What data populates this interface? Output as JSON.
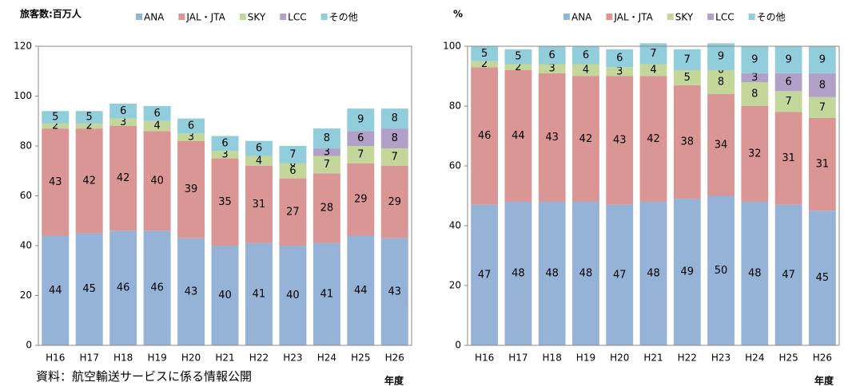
{
  "source": "資料：航空輸送サービスに係る情報公開",
  "chart_data": [
    {
      "type": "stacked_bar",
      "y_label": "旅客数:百万人",
      "x_label": "年度",
      "categories": [
        "H16",
        "H17",
        "H18",
        "H19",
        "H20",
        "H21",
        "H22",
        "H23",
        "H24",
        "H25",
        "H26"
      ],
      "ylim": [
        0,
        120
      ],
      "yticks": [
        0,
        20,
        40,
        60,
        80,
        100,
        120
      ],
      "grid": false,
      "series": [
        {
          "name": "ANA",
          "color": "#95b3d7",
          "values": [
            44,
            45,
            46,
            46,
            43,
            40,
            41,
            40,
            41,
            44,
            43
          ]
        },
        {
          "name": "JAL・JTA",
          "color": "#da9694",
          "values": [
            43,
            42,
            42,
            40,
            39,
            35,
            31,
            27,
            28,
            29,
            29
          ]
        },
        {
          "name": "SKY",
          "color": "#c4d79b",
          "values": [
            2,
            2,
            3,
            4,
            3,
            3,
            4,
            6,
            7,
            7,
            7
          ]
        },
        {
          "name": "LCC",
          "color": "#b1a0c7",
          "values": [
            null,
            null,
            null,
            null,
            null,
            null,
            null,
            0,
            3,
            6,
            8
          ]
        },
        {
          "name": "その他",
          "color": "#92cddc",
          "values": [
            5,
            5,
            6,
            6,
            6,
            6,
            6,
            7,
            8,
            9,
            8
          ]
        }
      ]
    },
    {
      "type": "stacked_bar",
      "y_label": "%",
      "x_label": "年度",
      "categories": [
        "H16",
        "H17",
        "H18",
        "H19",
        "H20",
        "H21",
        "H22",
        "H23",
        "H24",
        "H25",
        "H26"
      ],
      "ylim": [
        0,
        100
      ],
      "yticks": [
        0,
        20,
        40,
        60,
        80,
        100
      ],
      "grid": false,
      "series": [
        {
          "name": "ANA",
          "color": "#95b3d7",
          "values": [
            47,
            48,
            48,
            48,
            47,
            48,
            49,
            50,
            48,
            47,
            45
          ]
        },
        {
          "name": "JAL・JTA",
          "color": "#da9694",
          "values": [
            46,
            44,
            43,
            42,
            43,
            42,
            38,
            34,
            32,
            31,
            31
          ]
        },
        {
          "name": "SKY",
          "color": "#c4d79b",
          "values": [
            2,
            2,
            3,
            4,
            3,
            4,
            5,
            8,
            8,
            7,
            7
          ]
        },
        {
          "name": "LCC",
          "color": "#b1a0c7",
          "values": [
            null,
            null,
            null,
            null,
            null,
            null,
            null,
            0,
            3,
            6,
            8
          ]
        },
        {
          "name": "その他",
          "color": "#92cddc",
          "values": [
            5,
            5,
            6,
            6,
            6,
            7,
            7,
            9,
            9,
            9,
            9
          ]
        }
      ]
    }
  ]
}
